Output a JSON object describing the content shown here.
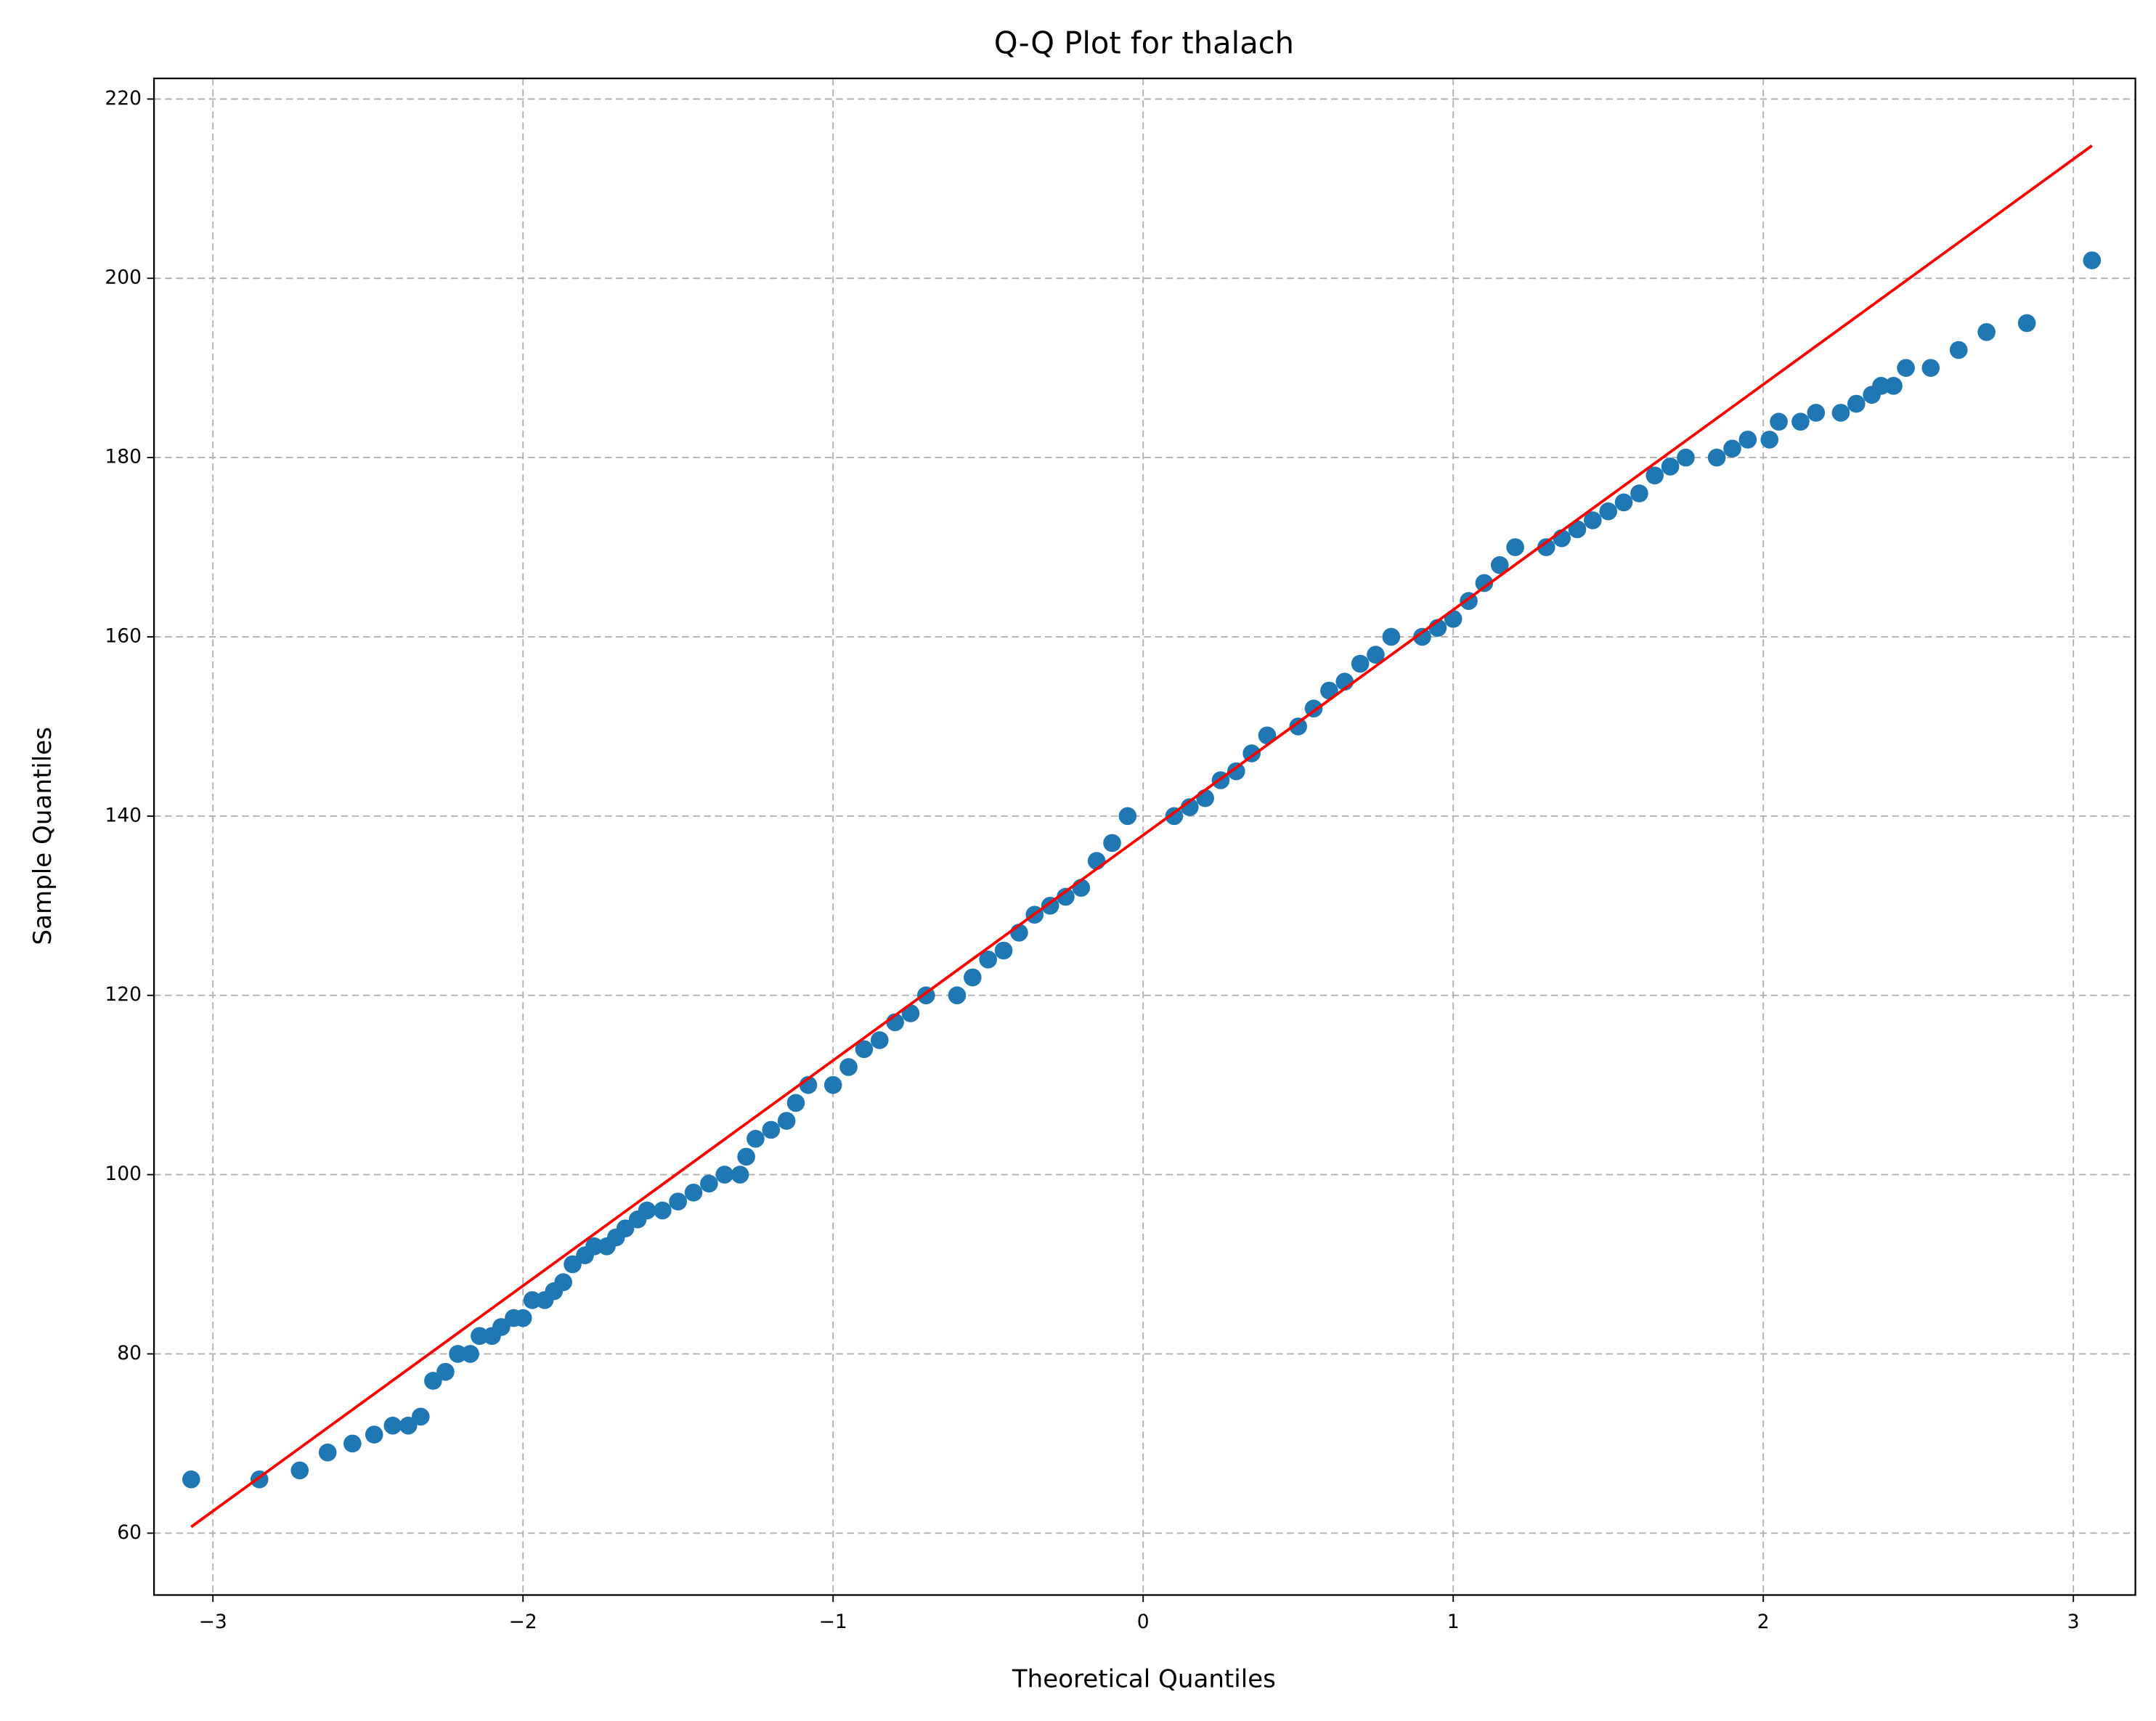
{
  "chart_data": {
    "type": "scatter",
    "title": "Q-Q Plot for thalach",
    "xlabel": "Theoretical Quantiles",
    "ylabel": "Sample Quantiles",
    "color": "#1f77b4",
    "grid": true,
    "xlim": [
      -3.19,
      3.2
    ],
    "ylim": [
      53.1,
      222.3
    ],
    "xticks": [
      {
        "value": -3,
        "label": "−3"
      },
      {
        "value": -2,
        "label": "−2"
      },
      {
        "value": -1,
        "label": "−1"
      },
      0,
      1,
      2,
      3
    ],
    "yticks": [
      60,
      80,
      100,
      120,
      140,
      160,
      180,
      200,
      220
    ],
    "x": [
      -3.07,
      -2.85,
      -2.72,
      -2.63,
      -2.55,
      -2.48,
      -2.42,
      -2.37,
      -2.33,
      -2.29,
      -2.25,
      -2.21,
      -2.17,
      -2.14,
      -2.1,
      -2.07,
      -2.03,
      -2.0,
      -1.97,
      -1.93,
      -1.9,
      -1.87,
      -1.84,
      -1.8,
      -1.77,
      -1.73,
      -1.7,
      -1.67,
      -1.63,
      -1.6,
      -1.55,
      -1.5,
      -1.45,
      -1.4,
      -1.35,
      -1.3,
      -1.28,
      -1.25,
      -1.2,
      -1.15,
      -1.12,
      -1.08,
      -1.0,
      -0.95,
      -0.9,
      -0.85,
      -0.8,
      -0.75,
      -0.7,
      -0.6,
      -0.55,
      -0.5,
      -0.45,
      -0.4,
      -0.35,
      -0.3,
      -0.25,
      -0.2,
      -0.15,
      -0.1,
      -0.05,
      0.1,
      0.15,
      0.2,
      0.25,
      0.3,
      0.35,
      0.4,
      0.5,
      0.55,
      0.6,
      0.65,
      0.7,
      0.75,
      0.8,
      0.9,
      0.95,
      1.0,
      1.05,
      1.1,
      1.15,
      1.2,
      1.3,
      1.35,
      1.4,
      1.45,
      1.5,
      1.55,
      1.6,
      1.65,
      1.7,
      1.75,
      1.85,
      1.9,
      1.95,
      2.02,
      2.05,
      2.12,
      2.17,
      2.25,
      2.3,
      2.35,
      2.38,
      2.42,
      2.46,
      2.54,
      2.63,
      2.72,
      2.85,
      3.06
    ],
    "values": [
      66,
      66,
      67,
      69,
      70,
      71,
      72,
      72,
      73,
      77,
      78,
      80,
      80,
      82,
      82,
      83,
      84,
      84,
      86,
      86,
      87,
      88,
      90,
      91,
      92,
      92,
      93,
      94,
      95,
      96,
      96,
      97,
      98,
      99,
      100,
      100,
      102,
      104,
      105,
      106,
      108,
      110,
      110,
      112,
      114,
      115,
      117,
      118,
      120,
      120,
      122,
      124,
      125,
      127,
      129,
      130,
      131,
      132,
      135,
      137,
      140,
      140,
      141,
      142,
      144,
      145,
      147,
      149,
      150,
      152,
      154,
      155,
      157,
      158,
      160,
      160,
      161,
      162,
      164,
      166,
      168,
      170,
      170,
      171,
      172,
      173,
      174,
      175,
      176,
      178,
      179,
      180,
      180,
      181,
      182,
      182,
      184,
      184,
      185,
      185,
      186,
      187,
      188,
      188,
      190,
      190,
      192,
      194,
      195,
      202
    ],
    "line": {
      "color": "#ff0000",
      "x": [
        -3.07,
        3.06
      ],
      "values": [
        60.7,
        214.8
      ]
    }
  }
}
